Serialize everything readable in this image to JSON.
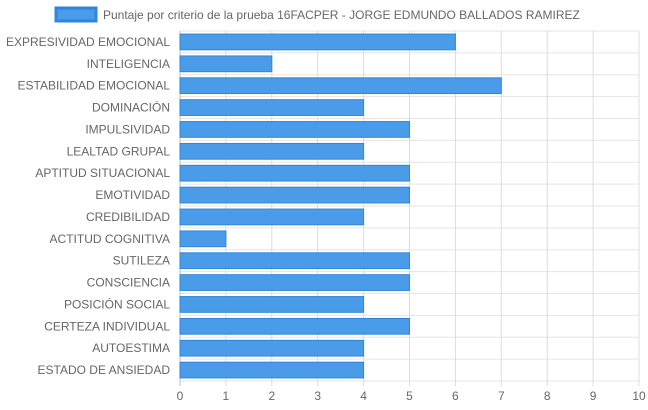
{
  "chart_data": {
    "type": "bar",
    "orientation": "horizontal",
    "categories": [
      "EXPRESIVIDAD EMOCIONAL",
      "INTELIGENCIA",
      "ESTABILIDAD EMOCIONAL",
      "DOMINACIÓN",
      "IMPULSIVIDAD",
      "LEALTAD GRUPAL",
      "APTITUD SITUACIONAL",
      "EMOTIVIDAD",
      "CREDIBILIDAD",
      "ACTITUD COGNITIVA",
      "SUTILEZA",
      "CONSCIENCIA",
      "POSICIÓN SOCIAL",
      "CERTEZA INDIVIDUAL",
      "AUTOESTIMA",
      "ESTADO DE ANSIEDAD"
    ],
    "series": [
      {
        "name": "Puntaje por criterio de la prueba 16FACPER - JORGE EDMUNDO BALLADOS RAMIREZ",
        "values": [
          6,
          2,
          7,
          4,
          5,
          4,
          5,
          5,
          4,
          1,
          5,
          5,
          4,
          5,
          4,
          4
        ]
      }
    ],
    "xlim": [
      0,
      10
    ],
    "x_ticks": [
      "0",
      "1",
      "2",
      "3",
      "4",
      "5",
      "6",
      "7",
      "8",
      "9",
      "10"
    ],
    "grid": true,
    "legend_position": "top",
    "colors": {
      "bar_fill": "#4a9ce8",
      "bar_stroke": "#2f86dc",
      "grid": "#e5e5e5",
      "text": "#666666"
    }
  }
}
